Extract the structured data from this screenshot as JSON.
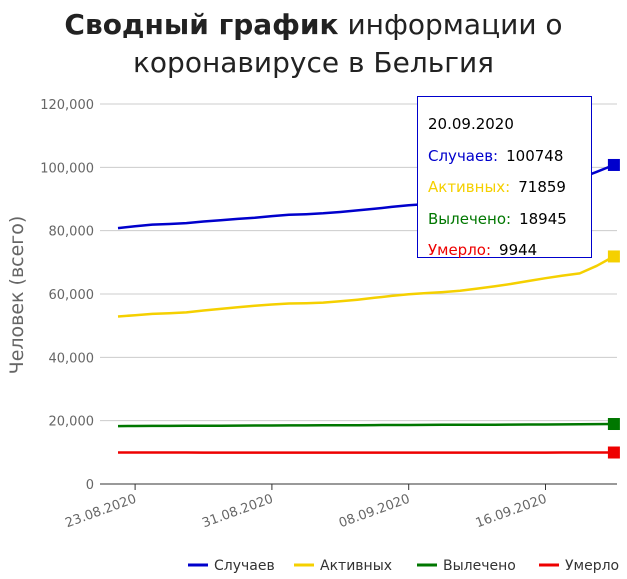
{
  "title": {
    "bold": "Сводный график",
    "line1_rest": "информации о",
    "line2": "коронавирусе в Бельгия"
  },
  "chart_data": {
    "type": "line",
    "ylabel": "Человек (всего)",
    "ylim": [
      0,
      120000
    ],
    "y_ticks": [
      "0",
      "20,000",
      "40,000",
      "60,000",
      "80,000",
      "100,000",
      "120,000"
    ],
    "x_ticks": [
      {
        "date": "2020-08-23",
        "label": "23.08.2020"
      },
      {
        "date": "2020-08-31",
        "label": "31.08.2020"
      },
      {
        "date": "2020-09-08",
        "label": "08.09.2020"
      },
      {
        "date": "2020-09-16",
        "label": "16.09.2020"
      }
    ],
    "x": [
      "2020-08-22",
      "2020-08-23",
      "2020-08-24",
      "2020-08-25",
      "2020-08-26",
      "2020-08-27",
      "2020-08-28",
      "2020-08-29",
      "2020-08-30",
      "2020-08-31",
      "2020-09-01",
      "2020-09-02",
      "2020-09-03",
      "2020-09-04",
      "2020-09-05",
      "2020-09-06",
      "2020-09-07",
      "2020-09-08",
      "2020-09-09",
      "2020-09-10",
      "2020-09-11",
      "2020-09-12",
      "2020-09-13",
      "2020-09-14",
      "2020-09-15",
      "2020-09-16",
      "2020-09-17",
      "2020-09-18",
      "2020-09-19",
      "2020-09-20"
    ],
    "series": [
      {
        "name": "Случаев",
        "color": "#0000cc",
        "values": [
          80800,
          81400,
          81900,
          82100,
          82400,
          82900,
          83300,
          83700,
          84100,
          84600,
          85000,
          85200,
          85500,
          85900,
          86400,
          86900,
          87500,
          88000,
          88400,
          88900,
          89400,
          90000,
          90800,
          91800,
          92800,
          93800,
          95000,
          96500,
          98600,
          100748
        ]
      },
      {
        "name": "Активных",
        "color": "#f5d000",
        "values": [
          52900,
          53300,
          53700,
          53900,
          54200,
          54800,
          55300,
          55800,
          56300,
          56700,
          57000,
          57100,
          57300,
          57700,
          58200,
          58800,
          59400,
          59900,
          60300,
          60600,
          61000,
          61700,
          62400,
          63200,
          64100,
          65000,
          65800,
          66500,
          68900,
          71859
        ]
      },
      {
        "name": "Вылечено",
        "color": "#007700",
        "values": [
          18300,
          18320,
          18340,
          18360,
          18380,
          18400,
          18420,
          18440,
          18460,
          18480,
          18500,
          18520,
          18540,
          18560,
          18580,
          18600,
          18620,
          18640,
          18660,
          18680,
          18700,
          18720,
          18740,
          18760,
          18780,
          18800,
          18830,
          18860,
          18900,
          18945
        ]
      },
      {
        "name": "Умерло",
        "color": "#ee0000",
        "values": [
          9950,
          9950,
          9950,
          9950,
          9950,
          9900,
          9900,
          9900,
          9900,
          9900,
          9900,
          9900,
          9910,
          9910,
          9910,
          9910,
          9910,
          9910,
          9920,
          9920,
          9920,
          9920,
          9930,
          9930,
          9930,
          9930,
          9935,
          9935,
          9940,
          9944
        ]
      }
    ],
    "legend": "bottom-right",
    "grid": true
  },
  "tooltip": {
    "date": "20.09.2020",
    "rows": [
      {
        "label": "Случаев:",
        "value": "100748",
        "color": "#0000cc"
      },
      {
        "label": "Активных:",
        "value": "71859",
        "color": "#f5d000"
      },
      {
        "label": "Вылечено:",
        "value": "18945",
        "color": "#007700"
      },
      {
        "label": "Умерло:",
        "value": "9944",
        "color": "#ee0000"
      }
    ]
  }
}
